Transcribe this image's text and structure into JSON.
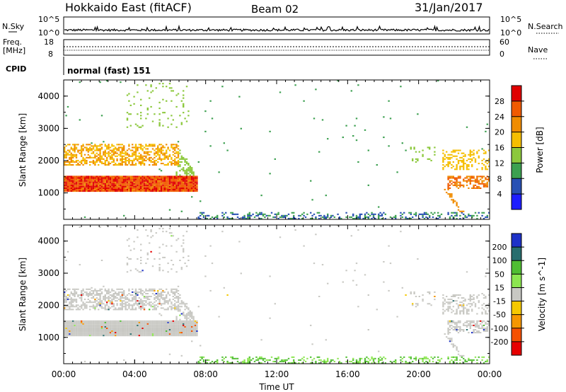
{
  "header": {
    "title": "Hokkaido East (fitACF)",
    "beam": "Beam 02",
    "date": "31/Jan/2017"
  },
  "top_panels": {
    "nsky_label": "N.Sky",
    "nsky_ticks": [
      "10^5",
      "10^0"
    ],
    "nsearch_label": "N.Search",
    "nsearch_ticks": [
      "10^5",
      "10^0"
    ],
    "freq_label_1": "Freq.",
    "freq_label_2": "[MHz]",
    "freq_ticks": [
      "18",
      "8"
    ],
    "nave_label": "Nave",
    "nave_ticks": [
      "60",
      "0"
    ],
    "cpid_label": "CPID",
    "cpid_value": "normal (fast) 151"
  },
  "chart_data": [
    {
      "type": "heatmap",
      "name": "power",
      "ylabel": "Slant Range [km]",
      "ylim": [
        180,
        4500
      ],
      "yticks": [
        1000,
        2000,
        3000,
        4000
      ],
      "colorbar_label": "Power [dB]",
      "colorbar_ticks": [
        "28",
        "24",
        "20",
        "16",
        "12",
        "8",
        "4"
      ],
      "colorbar_colors": [
        "#e00000",
        "#f05a00",
        "#f08c00",
        "#f5be00",
        "#8cc83c",
        "#3ca050",
        "#2850b4",
        "#1e1eff"
      ]
    },
    {
      "type": "heatmap",
      "name": "velocity",
      "ylabel": "Slant Range [km]",
      "ylim": [
        180,
        4500
      ],
      "yticks": [
        1000,
        2000,
        3000,
        4000
      ],
      "colorbar_label": "Velocity [m s^-1]",
      "colorbar_ticks": [
        "200",
        "100",
        "50",
        "15",
        "-15",
        "-50",
        "-100",
        "-200"
      ],
      "colorbar_colors": [
        "#1e32c8",
        "#286e6e",
        "#50be32",
        "#8ce650",
        "#c8c8c3",
        "#f5c800",
        "#f59600",
        "#f55000",
        "#e60000"
      ]
    }
  ],
  "time_axis": {
    "label": "Time UT",
    "ticks": [
      "00:00",
      "04:00",
      "08:00",
      "12:00",
      "16:00",
      "20:00",
      "00:00"
    ]
  },
  "colors": {
    "axis": "#000000"
  }
}
